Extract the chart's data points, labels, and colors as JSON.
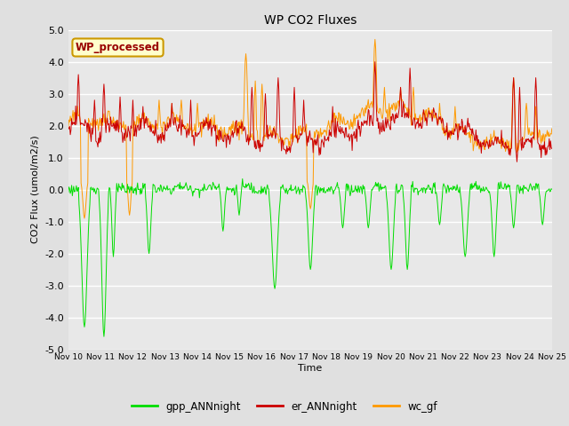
{
  "title": "WP CO2 Fluxes",
  "xlabel": "Time",
  "ylabel": "CO2 Flux (umol/m2/s)",
  "ylim": [
    -5.0,
    5.0
  ],
  "yticks": [
    -5.0,
    -4.0,
    -3.0,
    -2.0,
    -1.0,
    0.0,
    1.0,
    2.0,
    3.0,
    4.0,
    5.0
  ],
  "n_days": 15,
  "n_per_day": 48,
  "bg_color": "#e0e0e0",
  "plot_bg_color": "#e8e8e8",
  "gpp_color": "#00dd00",
  "er_color": "#cc0000",
  "wc_color": "#ff9900",
  "legend_labels": [
    "gpp_ANNnight",
    "er_ANNnight",
    "wc_gf"
  ],
  "annotation_text": "WP_processed",
  "annotation_color": "#990000",
  "annotation_bg": "#ffffcc",
  "annotation_border": "#cc9900",
  "linewidth": 0.7,
  "xtick_labels": [
    "Nov 10",
    "Nov 11",
    "Nov 12",
    "Nov 13",
    "Nov 14",
    "Nov 15",
    "Nov 16",
    "Nov 17",
    "Nov 18",
    "Nov 19",
    "Nov 20",
    "Nov 21",
    "Nov 22",
    "Nov 23",
    "Nov 24",
    "Nov 25"
  ],
  "xtick_positions": [
    0,
    1,
    2,
    3,
    4,
    5,
    6,
    7,
    8,
    9,
    10,
    11,
    12,
    13,
    14,
    15
  ]
}
